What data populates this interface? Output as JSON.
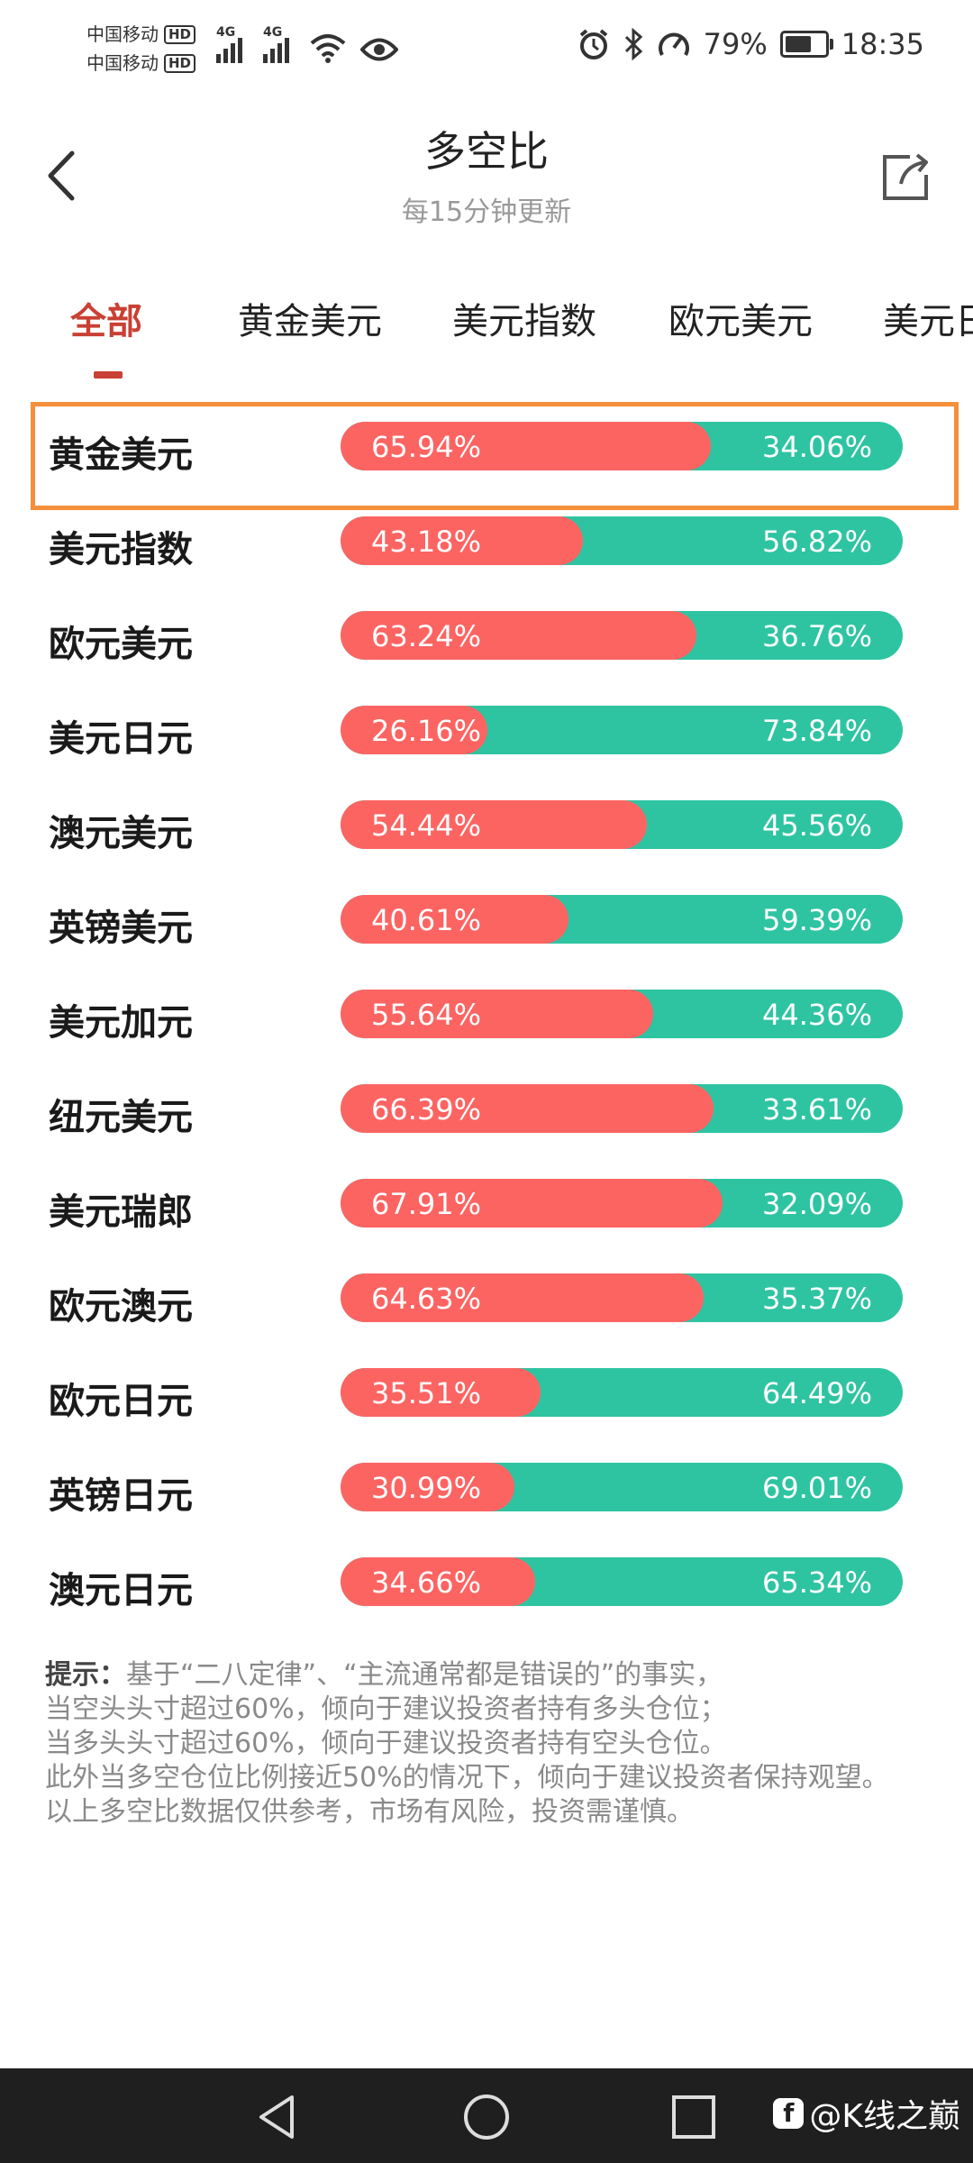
{
  "status": {
    "carrier1": "中国移动",
    "carrier2": "中国移动",
    "hd": "HD",
    "net": "4G",
    "battery": "79%",
    "battery_level": 0.79,
    "time": "18:35"
  },
  "header": {
    "title": "多空比",
    "subtitle": "每15分钟更新"
  },
  "tabs": [
    {
      "label": "全部",
      "active": true
    },
    {
      "label": "黄金美元",
      "active": false
    },
    {
      "label": "美元指数",
      "active": false
    },
    {
      "label": "欧元美元",
      "active": false
    },
    {
      "label": "美元日元",
      "active": false
    }
  ],
  "rows": [
    {
      "name": "黄金美元",
      "long": "65.94%",
      "short": "34.06%",
      "long_value": 65.94
    },
    {
      "name": "美元指数",
      "long": "43.18%",
      "short": "56.82%",
      "long_value": 43.18
    },
    {
      "name": "欧元美元",
      "long": "63.24%",
      "short": "36.76%",
      "long_value": 63.24
    },
    {
      "name": "美元日元",
      "long": "26.16%",
      "short": "73.84%",
      "long_value": 26.16
    },
    {
      "name": "澳元美元",
      "long": "54.44%",
      "short": "45.56%",
      "long_value": 54.44
    },
    {
      "name": "英镑美元",
      "long": "40.61%",
      "short": "59.39%",
      "long_value": 40.61
    },
    {
      "name": "美元加元",
      "long": "55.64%",
      "short": "44.36%",
      "long_value": 55.64
    },
    {
      "name": "纽元美元",
      "long": "66.39%",
      "short": "33.61%",
      "long_value": 66.39
    },
    {
      "name": "美元瑞郎",
      "long": "67.91%",
      "short": "32.09%",
      "long_value": 67.91
    },
    {
      "name": "欧元澳元",
      "long": "64.63%",
      "short": "35.37%",
      "long_value": 64.63
    },
    {
      "name": "欧元日元",
      "long": "35.51%",
      "short": "64.49%",
      "long_value": 35.51
    },
    {
      "name": "英镑日元",
      "long": "30.99%",
      "short": "69.01%",
      "long_value": 30.99
    },
    {
      "name": "澳元日元",
      "long": "34.66%",
      "short": "65.34%",
      "long_value": 34.66
    }
  ],
  "notes": {
    "lead": "提示：",
    "line1": "基于“二八定律”、“主流通常都是错误的”的事实，",
    "line2": "当空头头寸超过60%，倾向于建议投资者持有多头仓位；",
    "line3": "当多头头寸超过60%，倾向于建议投资者持有空头仓位。",
    "line4": "此外当多空仓位比例接近50%的情况下，倾向于建议投资者保持观望。",
    "line5": "以上多空比数据仅供参考，市场有风险，投资需谨慎。"
  },
  "watermark": "@K线之巅",
  "colors": {
    "long": "#fc6462",
    "short": "#2ec4a2",
    "accent": "#c94034",
    "highlight": "#f48f3b"
  }
}
